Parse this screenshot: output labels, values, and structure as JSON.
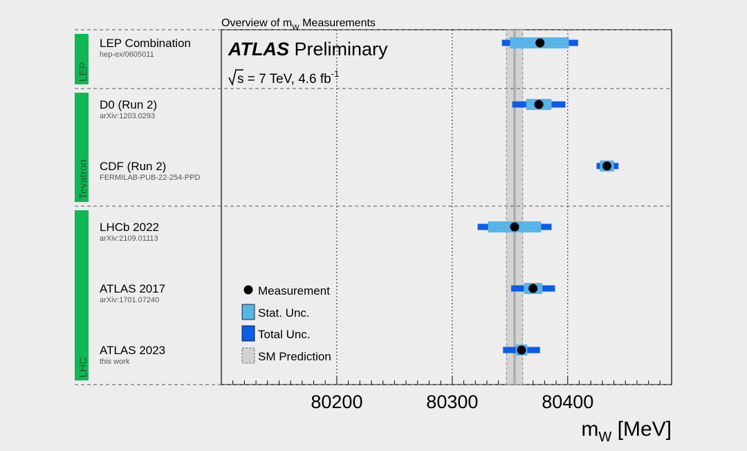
{
  "chart_data": {
    "type": "scatter",
    "title": "Overview of m",
    "title_sub": "W",
    "title_tail": " Measurements",
    "experiment": "ATLAS",
    "status": "Preliminary",
    "energy_label": "s = 7 TeV, 4.6 fb",
    "energy_sup": "-1",
    "xlabel": "m",
    "xlabel_sub": "W",
    "xlabel_unit": " [MeV]",
    "xlim": [
      80100,
      80490
    ],
    "xticks": [
      80200,
      80300,
      80400
    ],
    "xtick_labels": [
      "80200",
      "80300",
      "80400"
    ],
    "sm_prediction": {
      "value": 80354,
      "band": [
        80347,
        80361
      ]
    },
    "groups": [
      {
        "name": "LEP",
        "rows": [
          0,
          0
        ]
      },
      {
        "name": "Tevatron",
        "rows": [
          1,
          2
        ]
      },
      {
        "name": "LHC",
        "rows": [
          3,
          5
        ]
      }
    ],
    "measurements": [
      {
        "name": "LEP Combination",
        "ref": "hep-ex/0605011",
        "value": 80376,
        "stat": [
          80350,
          80401
        ],
        "total": [
          80343,
          80409
        ]
      },
      {
        "name": "D0 (Run 2)",
        "ref": "arXiv:1203.0293",
        "value": 80375,
        "stat": [
          80364,
          80386
        ],
        "total": [
          80352,
          80398
        ]
      },
      {
        "name": "CDF (Run 2)",
        "ref": "FERMILAB-PUB-22-254-PPD",
        "value": 80434,
        "stat": [
          80428,
          80440
        ],
        "total": [
          80425,
          80444
        ]
      },
      {
        "name": "LHCb 2022",
        "ref": "arXiv:2109.01113",
        "value": 80354,
        "stat": [
          80331,
          80377
        ],
        "total": [
          80322,
          80386
        ]
      },
      {
        "name": "ATLAS 2017",
        "ref": "arXiv:1701.07240",
        "value": 80370,
        "stat": [
          80362,
          80378
        ],
        "total": [
          80351,
          80389
        ]
      },
      {
        "name": "ATLAS 2023",
        "ref": "this work",
        "value": 80360,
        "stat": [
          80355,
          80365
        ],
        "total": [
          80344,
          80376
        ]
      }
    ],
    "legend": {
      "placement": "bottom-left",
      "entries": [
        {
          "label": "Measurement",
          "kind": "marker"
        },
        {
          "label": "Stat. Unc.",
          "kind": "stat"
        },
        {
          "label": "Total Unc.",
          "kind": "total"
        },
        {
          "label": "SM Prediction",
          "kind": "sm"
        }
      ]
    },
    "colors": {
      "stat": "#56b4e9",
      "total": "#0b5de8",
      "marker": "#000000",
      "group_bar": "#11b755",
      "sm_band": "#d3d3d3",
      "sm_line": "#a9a9a9",
      "background": "#ededed"
    }
  }
}
